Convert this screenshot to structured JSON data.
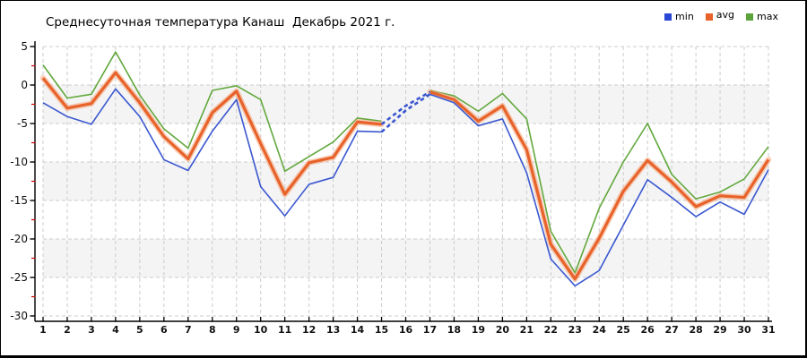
{
  "header": {
    "title": "Среднесуточная температура Канаш  Декабрь 2021 г."
  },
  "legend": {
    "items": [
      {
        "label": "min",
        "color": "#2a46d4"
      },
      {
        "label": "avg",
        "color": "#e8622a"
      },
      {
        "label": "max",
        "color": "#5ba33a"
      }
    ]
  },
  "colors": {
    "min_line": "#3a57d0",
    "avg_line": "#e8622a",
    "avg_halo": "#f3a87e",
    "max_line": "#62a83c",
    "dashed_line": "#3a57d0",
    "gridline": "#cccccc",
    "band": "#f4f4f4",
    "axis": "#000000",
    "minor_tick": "#cc0000",
    "tick_label": "#111111"
  },
  "chart_data": {
    "type": "line",
    "title": "Среднесуточная температура Канаш  Декабрь 2021 г.",
    "xlabel": "",
    "ylabel": "",
    "x": [
      1,
      2,
      3,
      4,
      5,
      6,
      7,
      8,
      9,
      10,
      11,
      12,
      13,
      14,
      15,
      16,
      17,
      18,
      19,
      20,
      21,
      22,
      23,
      24,
      25,
      26,
      27,
      28,
      29,
      30,
      31
    ],
    "ylim": [
      -30,
      5
    ],
    "ytick_step": 5,
    "y_minor_step": 2.5,
    "grid": true,
    "legend_position": "top-right",
    "band_ranges": [
      [
        0,
        -5
      ],
      [
        -10,
        -15
      ],
      [
        -20,
        -25
      ]
    ],
    "dashed_x_range": [
      15,
      17
    ],
    "dashed_series": [
      "min",
      "avg"
    ],
    "series": [
      {
        "name": "min",
        "values": [
          -2.3,
          -4.1,
          -5.1,
          -0.5,
          -4.1,
          -9.7,
          -11.1,
          -6.0,
          -1.9,
          -13.2,
          -17.0,
          -12.9,
          -12.0,
          -6.0,
          -6.1,
          -3.3,
          -1.2,
          -2.3,
          -5.3,
          -4.4,
          -11.4,
          -22.6,
          -26.1,
          -24.1,
          -18.2,
          -12.3,
          -14.6,
          -17.1,
          -15.2,
          -16.8,
          -11.0
        ]
      },
      {
        "name": "avg",
        "values": [
          0.9,
          -3.0,
          -2.4,
          1.6,
          -2.3,
          -6.7,
          -9.6,
          -3.6,
          -0.8,
          -7.6,
          -14.2,
          -10.1,
          -9.4,
          -4.8,
          -5.1,
          -2.7,
          -0.9,
          -1.9,
          -4.7,
          -2.7,
          -8.4,
          -20.7,
          -25.2,
          -19.9,
          -13.8,
          -9.8,
          -12.6,
          -15.8,
          -14.4,
          -14.6,
          -9.7
        ]
      },
      {
        "name": "max",
        "values": [
          2.6,
          -1.7,
          -1.2,
          4.3,
          -1.3,
          -5.7,
          -8.2,
          -0.7,
          -0.1,
          -1.9,
          -11.2,
          -9.3,
          -7.4,
          -4.3,
          -4.7,
          null,
          -0.7,
          -1.4,
          -3.4,
          -1.1,
          -4.4,
          -19.0,
          -24.4,
          -16.0,
          -10.0,
          -5.0,
          -11.6,
          -14.8,
          -13.9,
          -12.2,
          -8.0
        ]
      }
    ]
  }
}
